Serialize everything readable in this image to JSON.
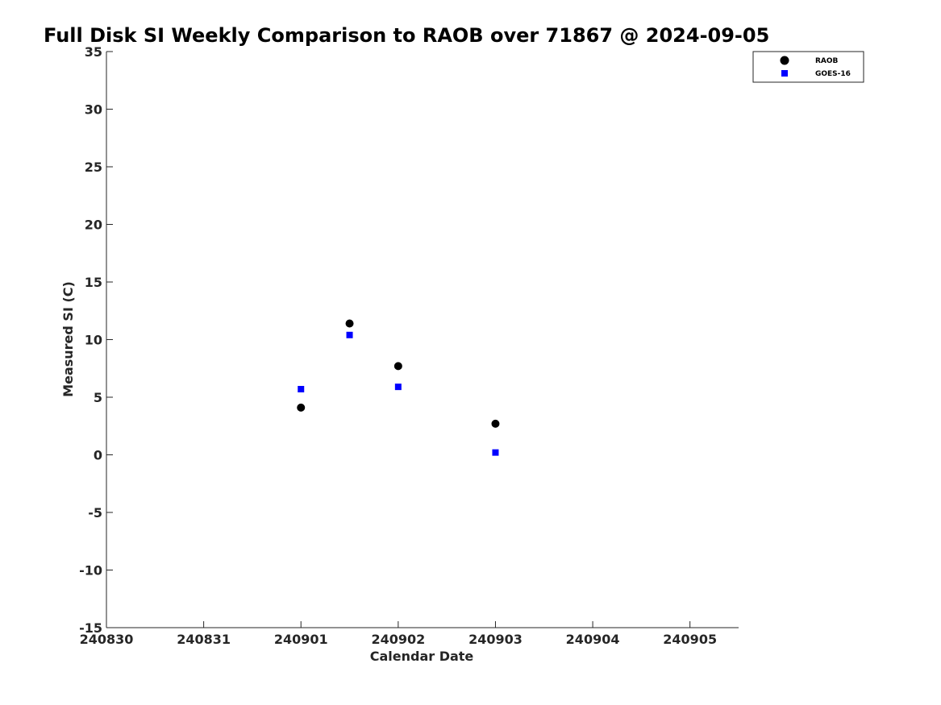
{
  "chart_data": {
    "type": "scatter",
    "title": "Full Disk SI Weekly Comparison to RAOB over 71867 @ 2024-09-05",
    "xlabel": "Calendar Date",
    "ylabel": "Measured SI (C)",
    "x_tick_labels": [
      "240830",
      "240831",
      "240901",
      "240902",
      "240903",
      "240904",
      "240905"
    ],
    "y_ticks": [
      35,
      30,
      25,
      20,
      15,
      10,
      5,
      0,
      -5,
      -10,
      -15
    ],
    "xlim": [
      0,
      6.5
    ],
    "ylim": [
      -15,
      35
    ],
    "grid": false,
    "legend_position": "top-right",
    "series": [
      {
        "name": "RAOB",
        "marker": "circle",
        "color": "#000000",
        "points": [
          {
            "x": 2.0,
            "y": 4.1
          },
          {
            "x": 2.5,
            "y": 11.4
          },
          {
            "x": 3.0,
            "y": 7.7
          },
          {
            "x": 4.0,
            "y": 2.7
          }
        ]
      },
      {
        "name": "GOES-16",
        "marker": "square",
        "color": "#0000ff",
        "points": [
          {
            "x": 2.0,
            "y": 5.7
          },
          {
            "x": 2.5,
            "y": 10.4
          },
          {
            "x": 3.0,
            "y": 5.9
          },
          {
            "x": 4.0,
            "y": 0.2
          }
        ]
      }
    ]
  }
}
